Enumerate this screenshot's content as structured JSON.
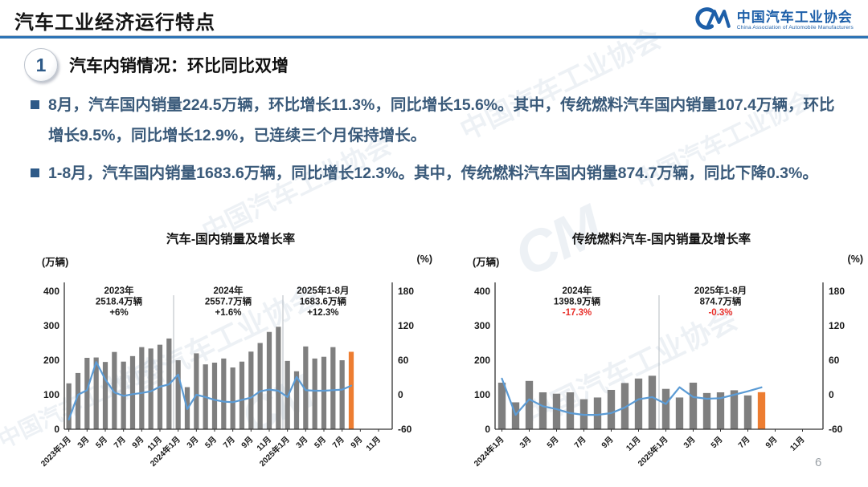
{
  "header": {
    "title": "汽车工业经济运行特点",
    "logo": {
      "mark": "CM",
      "name_cn": "中国汽车工业协会",
      "name_en": "China Association of Automobile Manufacturers"
    }
  },
  "section": {
    "number": "1",
    "heading": "汽车内销情况：环比同比双增"
  },
  "bullets": [
    {
      "text": "8月，汽车国内销量224.5万辆，环比增长11.3%，同比增长15.6%。其中，传统燃料汽车国内销量107.4万辆，环比增长9.5%，同比增长12.9%，已连续三个月保持增长。"
    },
    {
      "text": "1-8月，汽车国内销量1683.6万辆，同比增长12.3%。其中，传统燃料汽车国内销量874.7万辆，同比下降0.3%。"
    }
  ],
  "watermark": "中国汽车工业协会",
  "page_number": "6",
  "colors": {
    "bar": "#7f7f7f",
    "bar_highlight": "#ED7D31",
    "line": "#5B9BD5",
    "accent_blue": "#2e74b5",
    "annotation_red": "#e8302a",
    "body_text": "#3a5a7a"
  },
  "chart_data": [
    {
      "type": "bar",
      "title": "汽车-国内销量及增长率",
      "left_axis_label": "(万辆)",
      "right_axis_label": "(%)",
      "left_ticks": [
        0,
        100,
        200,
        300,
        400
      ],
      "right_ticks": [
        -60,
        0,
        60,
        120,
        180
      ],
      "ylim_left": [
        0,
        400
      ],
      "ylim_right": [
        -60,
        180
      ],
      "grid": false,
      "legend": "none",
      "axis_slots": 36,
      "separators_at": [
        12,
        24
      ],
      "x_tick_labels": [
        "2023年1月",
        "3月",
        "5月",
        "7月",
        "9月",
        "11月",
        "2024年1月",
        "3月",
        "5月",
        "7月",
        "9月",
        "11月",
        "2025年1月",
        "3月",
        "5月",
        "7月",
        "9月",
        "11月"
      ],
      "categories": [
        "2023年1月",
        "2023年2月",
        "2023年3月",
        "2023年4月",
        "2023年5月",
        "2023年6月",
        "2023年7月",
        "2023年8月",
        "2023年9月",
        "2023年10月",
        "2023年11月",
        "2023年12月",
        "2024年1月",
        "2024年2月",
        "2024年3月",
        "2024年4月",
        "2024年5月",
        "2024年6月",
        "2024年7月",
        "2024年8月",
        "2024年9月",
        "2024年10月",
        "2024年11月",
        "2024年12月",
        "2025年1月",
        "2025年2月",
        "2025年3月",
        "2025年4月",
        "2025年5月",
        "2025年6月",
        "2025年7月",
        "2025年8月"
      ],
      "series": [
        {
          "name": "国内销量(万辆)",
          "type": "bar",
          "values": [
            133,
            163,
            207,
            208,
            195,
            224,
            196,
            212,
            238,
            234,
            245,
            263,
            200,
            122,
            220,
            188,
            193,
            205,
            179,
            196,
            225,
            250,
            282,
            297,
            198,
            168,
            240,
            205,
            210,
            238,
            200,
            224.5
          ]
        },
        {
          "name": "增长率(%)",
          "type": "line",
          "values": [
            -43,
            0,
            8,
            57,
            27,
            4,
            -2,
            1,
            3,
            6,
            14,
            18,
            35,
            -25,
            0,
            -4,
            -9,
            -12,
            -13,
            -9,
            -5,
            6,
            9,
            7,
            -4,
            31,
            8,
            7,
            7,
            8,
            9,
            15.6
          ]
        }
      ],
      "highlight_last_bar": true,
      "annotations": [
        {
          "lines": [
            "2023年",
            "2518.4万辆",
            "+6%"
          ],
          "pct_color": "#1a1a1a",
          "center_slot": 6
        },
        {
          "lines": [
            "2024年",
            "2557.7万辆",
            "+1.6%"
          ],
          "pct_color": "#1a1a1a",
          "center_slot": 18
        },
        {
          "lines": [
            "2025年1-8月",
            "1683.6万辆",
            "+12.3%"
          ],
          "pct_color": "#1a1a1a",
          "center_slot": 28.4
        }
      ]
    },
    {
      "type": "bar",
      "title": "传统燃料汽车-国内销量及增长率",
      "left_axis_label": "(万辆)",
      "right_axis_label": "(%)",
      "left_ticks": [
        0,
        100,
        200,
        300,
        400
      ],
      "right_ticks": [
        -60,
        0,
        60,
        120,
        180
      ],
      "ylim_left": [
        0,
        400
      ],
      "ylim_right": [
        -60,
        180
      ],
      "grid": false,
      "legend": "none",
      "axis_slots": 24,
      "separators_at": [
        12
      ],
      "x_tick_labels": [
        "2024年1月",
        "3月",
        "5月",
        "7月",
        "9月",
        "11月",
        "2025年1月",
        "3月",
        "5月",
        "7月",
        "9月",
        "11月"
      ],
      "categories": [
        "2024年1月",
        "2024年2月",
        "2024年3月",
        "2024年4月",
        "2024年5月",
        "2024年6月",
        "2024年7月",
        "2024年8月",
        "2024年9月",
        "2024年10月",
        "2024年11月",
        "2024年12月",
        "2025年1月",
        "2025年2月",
        "2025年3月",
        "2025年4月",
        "2025年5月",
        "2025年6月",
        "2025年7月",
        "2025年8月"
      ],
      "series": [
        {
          "name": "国内销量(万辆)",
          "type": "bar",
          "values": [
            135,
            78,
            140,
            107,
            103,
            107,
            87,
            92,
            114,
            134,
            147,
            155,
            117,
            92,
            135,
            105,
            107,
            113,
            98,
            107.4
          ]
        },
        {
          "name": "增长率(%)",
          "type": "line",
          "values": [
            28,
            -35,
            -8,
            -20,
            -25,
            -32,
            -35,
            -35,
            -32,
            -22,
            -8,
            -4,
            -16,
            13,
            -4,
            -7,
            -6,
            0,
            6,
            12.9
          ]
        }
      ],
      "highlight_last_bar": true,
      "annotations": [
        {
          "lines": [
            "2024年",
            "1398.9万辆",
            "-17.3%"
          ],
          "pct_color": "#e8302a",
          "center_slot": 6
        },
        {
          "lines": [
            "2025年1-8月",
            "874.7万辆",
            "-0.3%"
          ],
          "pct_color": "#e8302a",
          "center_slot": 16.5
        }
      ]
    }
  ]
}
